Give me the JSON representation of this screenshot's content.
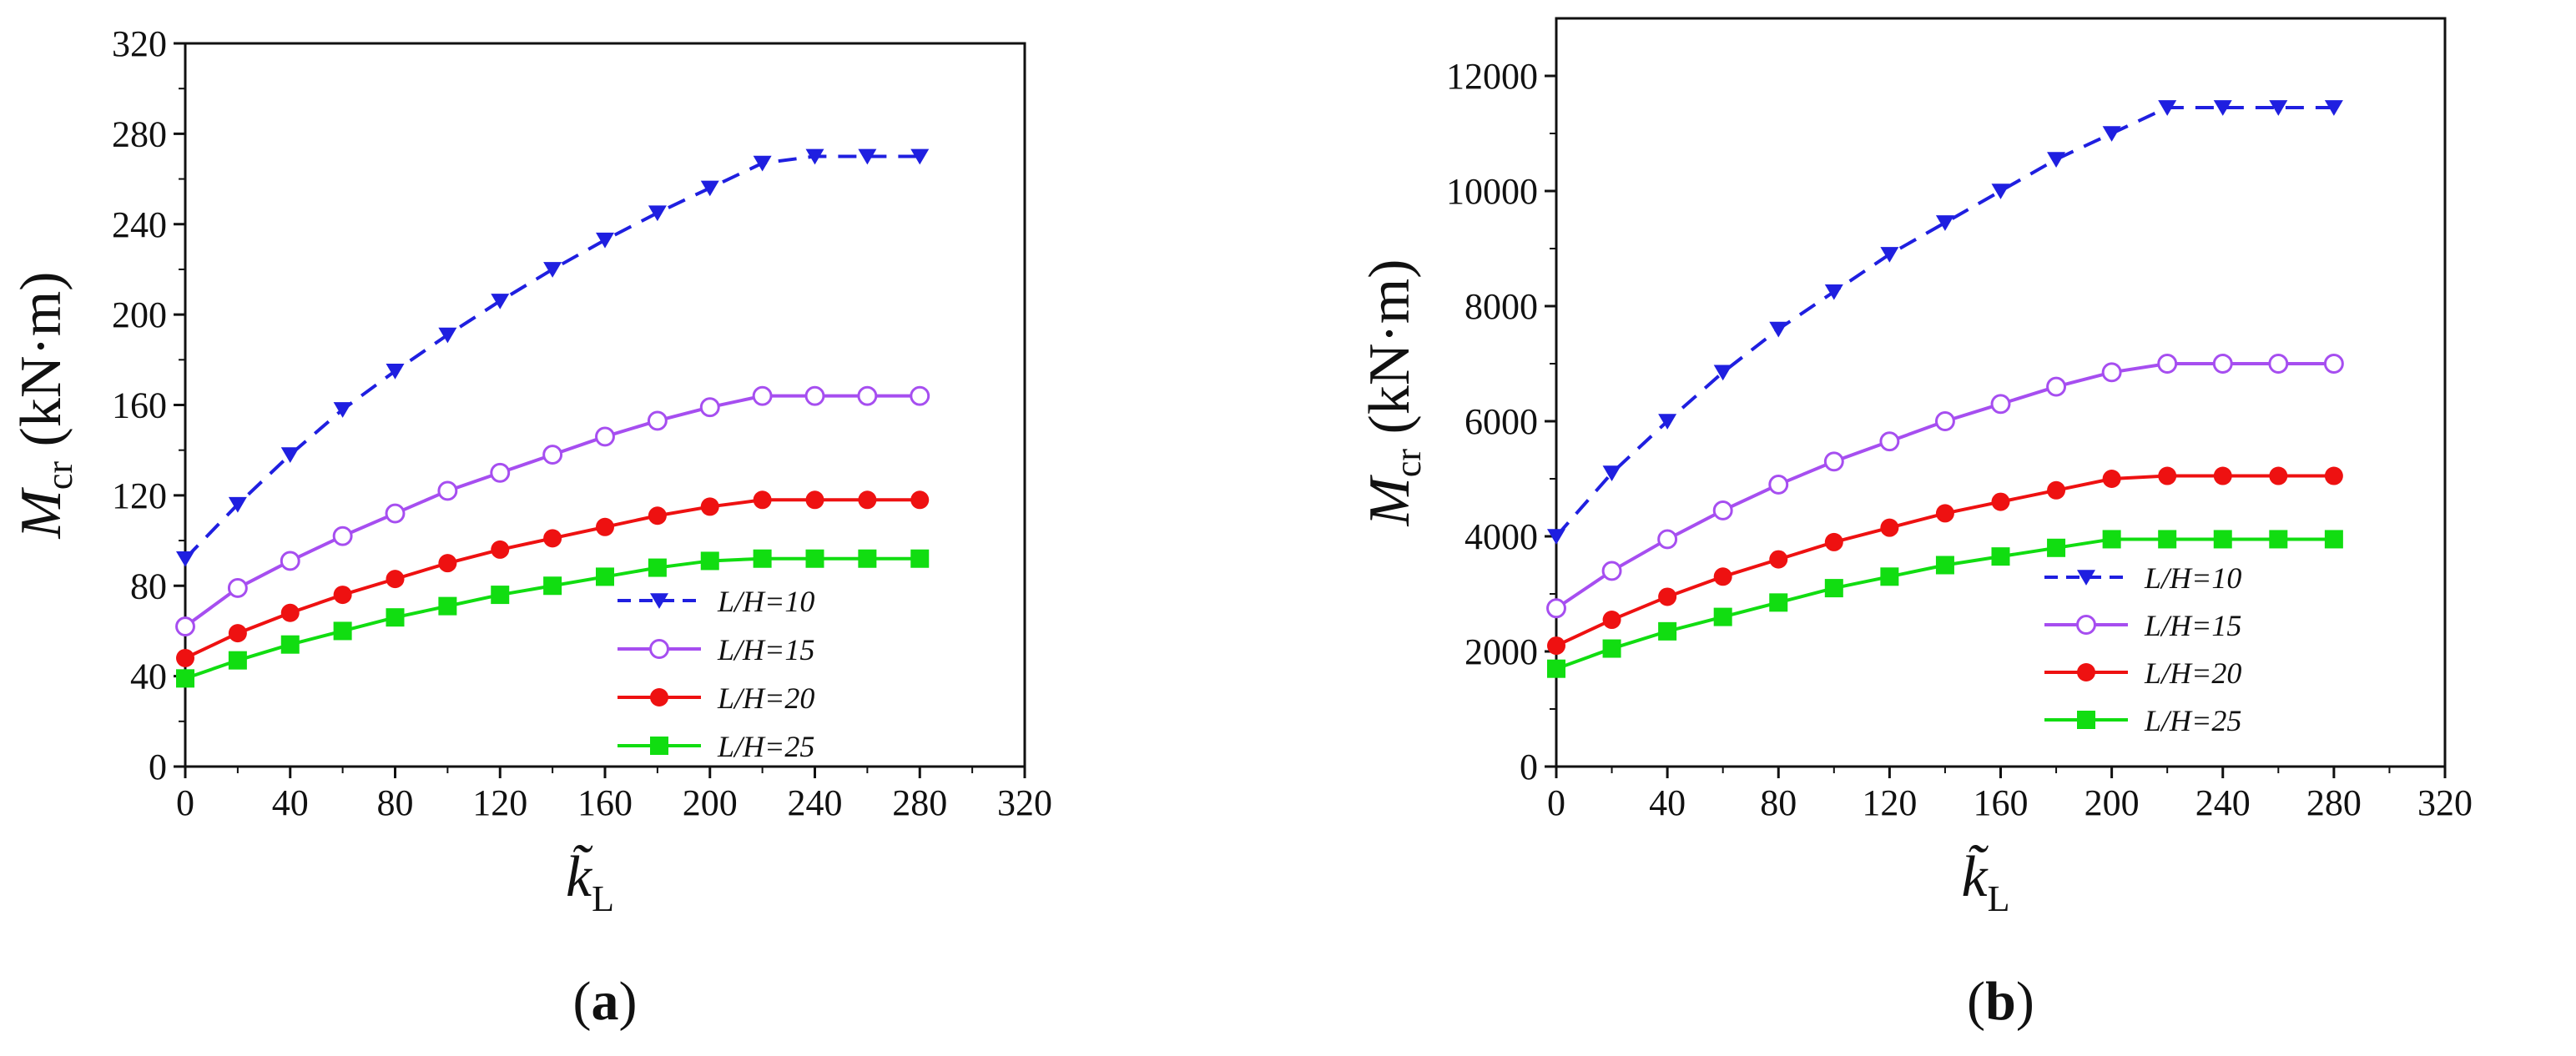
{
  "chart_data": [
    {
      "type": "line",
      "panel_label": "a",
      "title": "",
      "xlabel": "k̃",
      "xlabel_sub": "L",
      "ylabel": "M",
      "ylabel_sub": "cr",
      "ylabel_unit": "(kN·m)",
      "xlim": [
        0,
        320
      ],
      "ylim": [
        0,
        320
      ],
      "xticks": [
        "0",
        "40",
        "80",
        "120",
        "160",
        "200",
        "240",
        "280",
        "320"
      ],
      "yticks": [
        "0",
        "40",
        "80",
        "120",
        "160",
        "200",
        "240",
        "280",
        "320"
      ],
      "grid": false,
      "legend_position": "bottom-right",
      "x": [
        0,
        20,
        40,
        60,
        80,
        100,
        120,
        140,
        160,
        180,
        200,
        220,
        240,
        260,
        280
      ],
      "series": [
        {
          "name": "L/H=10",
          "color": "#1f1fe0",
          "marker": "triangle-down",
          "dashed": true,
          "values": [
            92,
            116,
            138,
            158,
            175,
            191,
            206,
            220,
            233,
            245,
            256,
            267,
            270,
            270,
            270
          ]
        },
        {
          "name": "L/H=15",
          "color": "#a64ef0",
          "marker": "open-circle",
          "dashed": false,
          "values": [
            62,
            79,
            91,
            102,
            112,
            122,
            130,
            138,
            146,
            153,
            159,
            164,
            164,
            164,
            164
          ]
        },
        {
          "name": "L/H=20",
          "color": "#ee1111",
          "marker": "filled-circle",
          "dashed": false,
          "values": [
            48,
            59,
            68,
            76,
            83,
            90,
            96,
            101,
            106,
            111,
            115,
            118,
            118,
            118,
            118
          ]
        },
        {
          "name": "L/H=25",
          "color": "#11dd11",
          "marker": "square",
          "dashed": false,
          "values": [
            39,
            47,
            54,
            60,
            66,
            71,
            76,
            80,
            84,
            88,
            91,
            92,
            92,
            92,
            92
          ]
        }
      ]
    },
    {
      "type": "line",
      "panel_label": "b",
      "title": "",
      "xlabel": "k̃",
      "xlabel_sub": "L",
      "ylabel": "M",
      "ylabel_sub": "cr",
      "ylabel_unit": "(kN·m)",
      "xlim": [
        0,
        320
      ],
      "ylim": [
        0,
        13000
      ],
      "xticks": [
        "0",
        "40",
        "80",
        "120",
        "160",
        "200",
        "240",
        "280",
        "320"
      ],
      "yticks": [
        "0",
        "2000",
        "4000",
        "6000",
        "8000",
        "10000",
        "12000"
      ],
      "ytick_values": [
        0,
        2000,
        4000,
        6000,
        8000,
        10000,
        12000
      ],
      "grid": false,
      "legend_position": "bottom-right",
      "x": [
        0,
        20,
        40,
        60,
        80,
        100,
        120,
        140,
        160,
        180,
        200,
        220,
        240,
        260,
        280
      ],
      "series": [
        {
          "name": "L/H=10",
          "color": "#1f1fe0",
          "marker": "triangle-down",
          "dashed": true,
          "values": [
            4000,
            5100,
            6000,
            6850,
            7600,
            8250,
            8900,
            9450,
            10000,
            10550,
            11000,
            11450,
            11450,
            11450,
            11450
          ]
        },
        {
          "name": "L/H=15",
          "color": "#a64ef0",
          "marker": "open-circle",
          "dashed": false,
          "values": [
            2750,
            3400,
            3950,
            4450,
            4900,
            5300,
            5650,
            6000,
            6300,
            6600,
            6850,
            7000,
            7000,
            7000,
            7000
          ]
        },
        {
          "name": "L/H=20",
          "color": "#ee1111",
          "marker": "filled-circle",
          "dashed": false,
          "values": [
            2100,
            2550,
            2950,
            3300,
            3600,
            3900,
            4150,
            4400,
            4600,
            4800,
            5000,
            5050,
            5050,
            5050,
            5050
          ]
        },
        {
          "name": "L/H=25",
          "color": "#11dd11",
          "marker": "square",
          "dashed": false,
          "values": [
            1700,
            2050,
            2350,
            2600,
            2850,
            3100,
            3300,
            3500,
            3650,
            3800,
            3950,
            3950,
            3950,
            3950,
            3950
          ]
        }
      ]
    }
  ]
}
